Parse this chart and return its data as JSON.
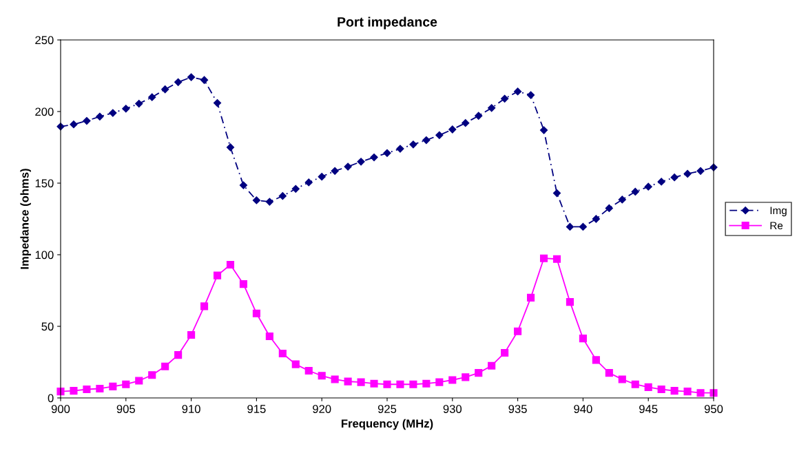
{
  "chart_data": {
    "type": "line",
    "title": "Port impedance",
    "xlabel": "Frequency (MHz)",
    "ylabel": "Impedance (ohms)",
    "x": [
      900,
      901,
      902,
      903,
      904,
      905,
      906,
      907,
      908,
      909,
      910,
      911,
      912,
      913,
      914,
      915,
      916,
      917,
      918,
      919,
      920,
      921,
      922,
      923,
      924,
      925,
      926,
      927,
      928,
      929,
      930,
      931,
      932,
      933,
      934,
      935,
      936,
      937,
      938,
      939,
      940,
      941,
      942,
      943,
      944,
      945,
      946,
      947,
      948,
      949,
      950
    ],
    "series": [
      {
        "name": "Img",
        "color": "#000080",
        "marker": "diamond",
        "line_style": "dashdot",
        "values": [
          189.5,
          191,
          193.5,
          196.5,
          199,
          202,
          205.5,
          210,
          215.5,
          220.5,
          224,
          222,
          206,
          175,
          148.5,
          138,
          137,
          141,
          146,
          150.5,
          154.5,
          158.5,
          161.5,
          165,
          168,
          171,
          174,
          177,
          180,
          183.5,
          187.5,
          192,
          197,
          202.5,
          209,
          214,
          211.5,
          187,
          143,
          119.5,
          119.5,
          125,
          132.5,
          138.5,
          144,
          147.5,
          151,
          154,
          156.5,
          158.5,
          161
        ]
      },
      {
        "name": "Re",
        "color": "#ff00ff",
        "marker": "square",
        "line_style": "solid",
        "values": [
          4.5,
          5,
          6,
          6.5,
          8,
          9.5,
          12,
          16,
          22,
          30,
          44,
          64,
          85.5,
          93,
          79.5,
          59,
          43,
          31,
          23.5,
          19,
          15.5,
          13,
          11.5,
          11,
          10,
          9.5,
          9.5,
          9.5,
          10,
          11,
          12.5,
          14.5,
          17.5,
          22.5,
          31.5,
          46.5,
          70,
          97.5,
          97,
          67,
          41.5,
          26.5,
          17.5,
          13,
          9.5,
          7.5,
          6,
          5,
          4.5,
          3.5,
          3.5
        ]
      }
    ],
    "xlim": [
      900,
      950
    ],
    "xticks": [
      900,
      905,
      910,
      915,
      920,
      925,
      930,
      935,
      940,
      945,
      950
    ],
    "ylim": [
      0,
      250
    ],
    "yticks": [
      0,
      50,
      100,
      150,
      200,
      250
    ],
    "grid": false,
    "legend": "right"
  }
}
